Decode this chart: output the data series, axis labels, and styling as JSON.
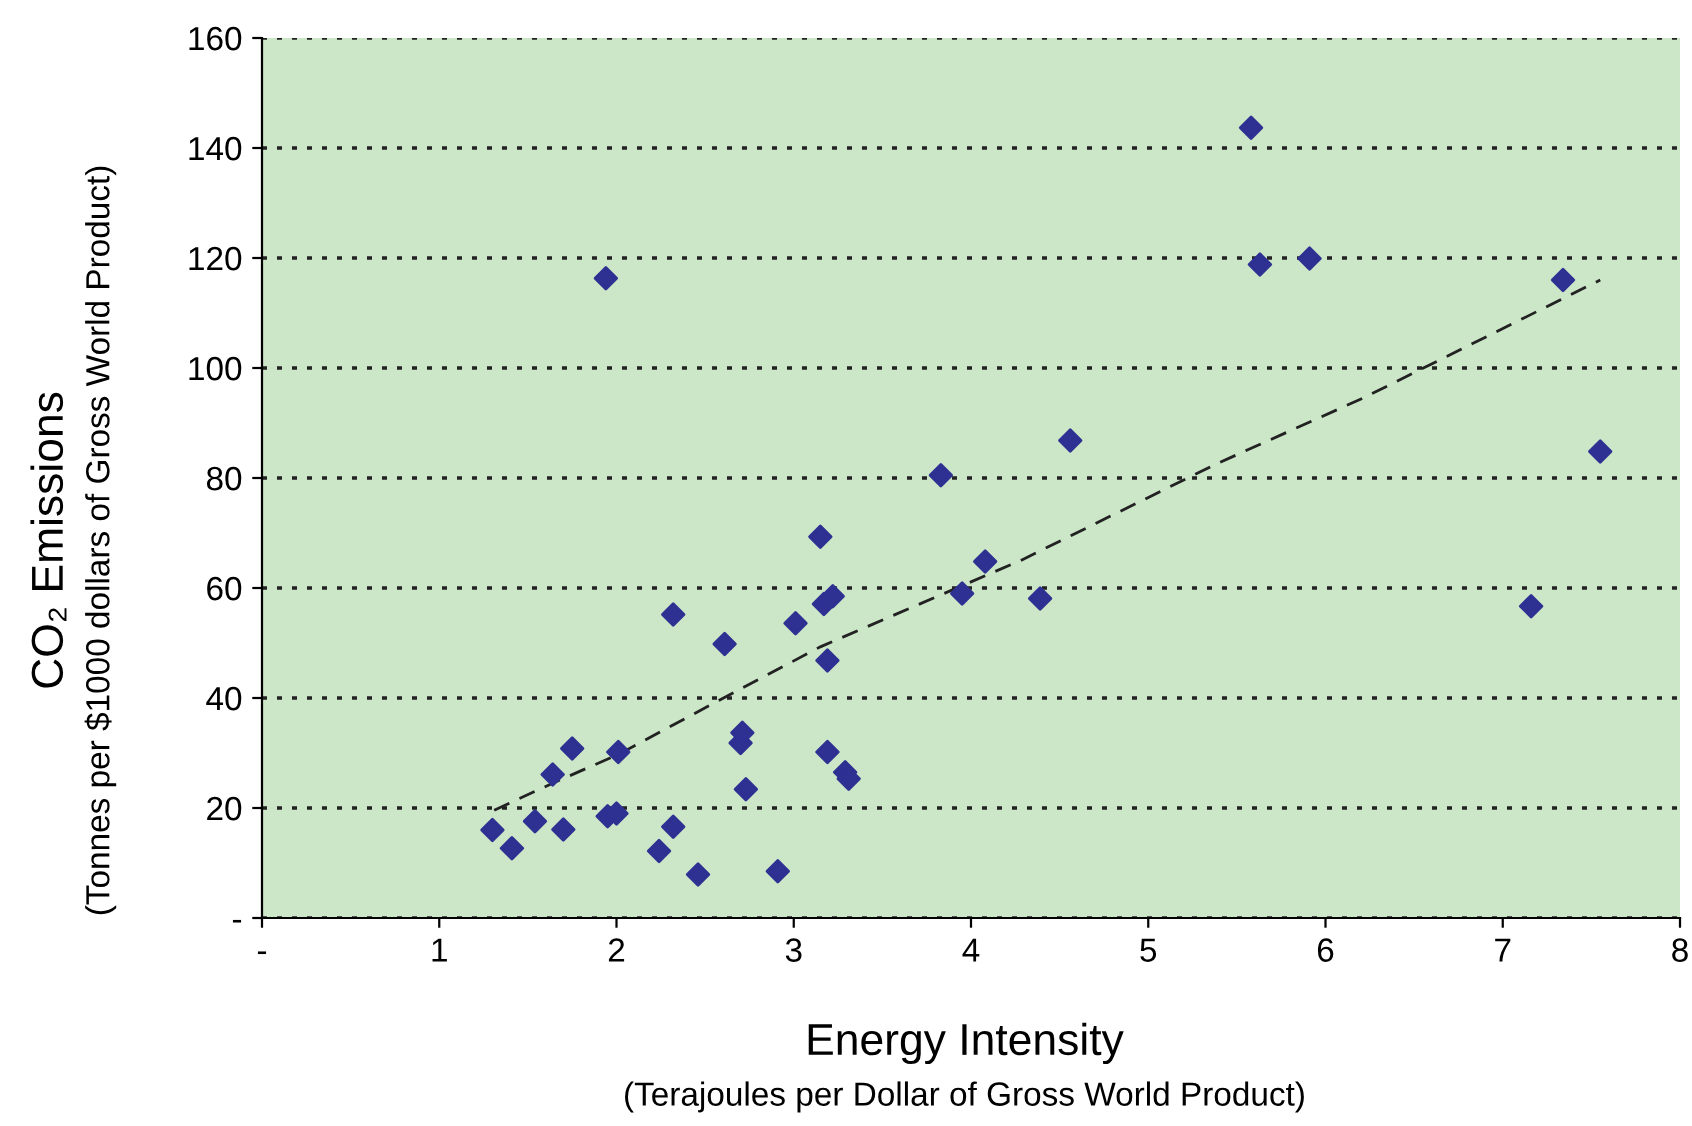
{
  "chart_data": {
    "type": "scatter",
    "xlabel": "Energy Intensity\n(Terajoules per Dollar of Gross World Product)",
    "ylabel": "CO₂ Emissions\n(Tonnes per $1000 dollars of Gross World Product)",
    "series": [
      {
        "color": "#2e3192",
        "marker": "diamond",
        "x": [
          1.3,
          1.41,
          1.54,
          1.64,
          1.7,
          1.75,
          1.95,
          2.0,
          2.01,
          1.94,
          2.24,
          2.32,
          2.32,
          2.46,
          2.61,
          2.7,
          2.71,
          2.73,
          2.91,
          3.01,
          3.17,
          3.22,
          3.19,
          3.19,
          3.29,
          3.31,
          3.15,
          3.83,
          3.95,
          4.08,
          4.39,
          4.56,
          5.58,
          5.63,
          5.91,
          7.16,
          7.34,
          7.55
        ],
        "values": [
          16.0,
          12.7,
          17.6,
          26.1,
          16.1,
          30.8,
          18.5,
          19.0,
          30.2,
          116.3,
          12.2,
          16.6,
          55.2,
          7.9,
          49.8,
          31.8,
          33.7,
          23.4,
          8.5,
          53.6,
          57.1,
          58.5,
          46.8,
          30.2,
          26.5,
          25.3,
          69.3,
          80.5,
          59.0,
          64.8,
          58.1,
          86.8,
          143.7,
          118.8,
          119.9,
          56.7,
          116.0,
          84.8
        ]
      },
      {
        "type": "line",
        "color": "#222222",
        "line_style": "dashed",
        "x": [
          1.31,
          1.64,
          2.02,
          2.58,
          3.15,
          4.28,
          5.38,
          6.21,
          7.55
        ],
        "values": [
          19.6,
          24.5,
          29.9,
          39.6,
          49.3,
          65.0,
          82.5,
          94.5,
          116.0
        ]
      }
    ],
    "xlim": [
      0,
      8
    ],
    "xticks": [
      {
        "value": 0,
        "label": "-"
      },
      1,
      2,
      3,
      4,
      5,
      6,
      7,
      8
    ],
    "ylim": [
      0,
      160
    ],
    "yticks": [
      {
        "value": 0,
        "label": "-"
      },
      20,
      40,
      60,
      80,
      100,
      120,
      140,
      160
    ],
    "grid": "y",
    "legend": false
  }
}
